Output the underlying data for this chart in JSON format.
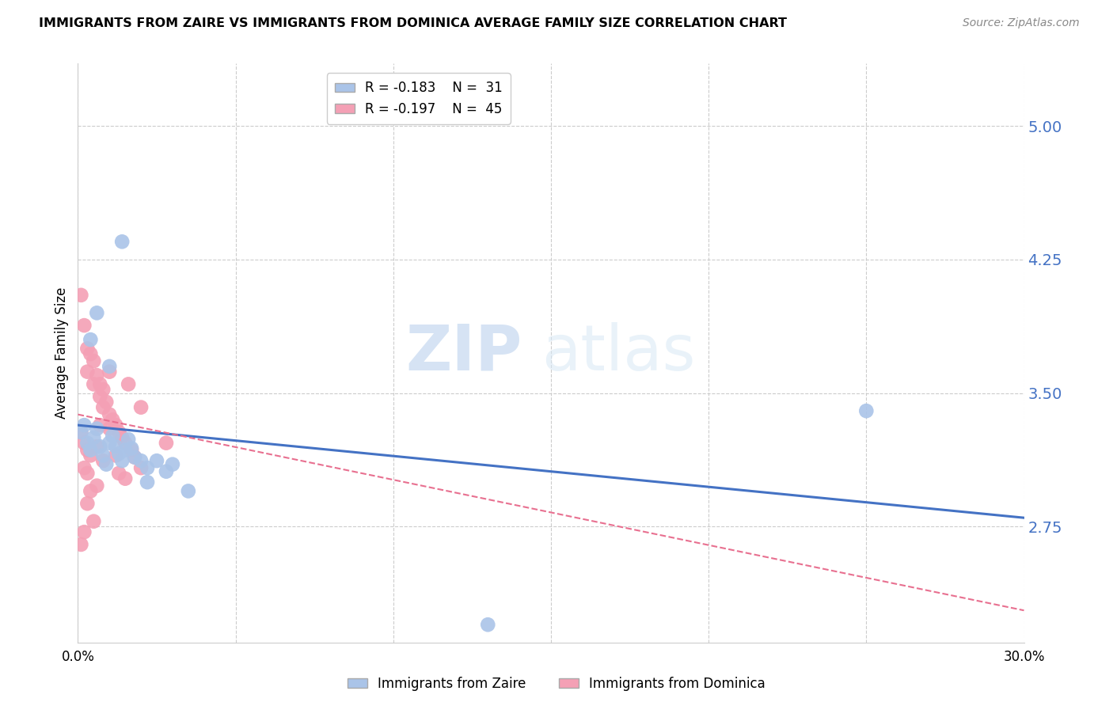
{
  "title": "IMMIGRANTS FROM ZAIRE VS IMMIGRANTS FROM DOMINICA AVERAGE FAMILY SIZE CORRELATION CHART",
  "source": "Source: ZipAtlas.com",
  "ylabel": "Average Family Size",
  "xlim": [
    0.0,
    0.3
  ],
  "ylim": [
    2.1,
    5.35
  ],
  "yticks": [
    2.75,
    3.5,
    4.25,
    5.0
  ],
  "xticks": [
    0.0,
    0.05,
    0.1,
    0.15,
    0.2,
    0.25,
    0.3
  ],
  "background_color": "#ffffff",
  "grid_color": "#cccccc",
  "zaire_color": "#aac4e8",
  "dominica_color": "#f4a0b5",
  "zaire_line_color": "#4472c4",
  "dominica_line_color": "#e87090",
  "legend_r_zaire": "-0.183",
  "legend_n_zaire": "31",
  "legend_r_dominica": "-0.197",
  "legend_n_dominica": "45",
  "watermark_zip": "ZIP",
  "watermark_atlas": "atlas",
  "zaire_points": [
    [
      0.001,
      3.28
    ],
    [
      0.002,
      3.32
    ],
    [
      0.003,
      3.22
    ],
    [
      0.004,
      3.18
    ],
    [
      0.005,
      3.25
    ],
    [
      0.006,
      3.3
    ],
    [
      0.007,
      3.2
    ],
    [
      0.008,
      3.15
    ],
    [
      0.009,
      3.1
    ],
    [
      0.01,
      3.22
    ],
    [
      0.011,
      3.26
    ],
    [
      0.012,
      3.2
    ],
    [
      0.013,
      3.16
    ],
    [
      0.014,
      3.12
    ],
    [
      0.015,
      3.18
    ],
    [
      0.016,
      3.24
    ],
    [
      0.017,
      3.19
    ],
    [
      0.018,
      3.14
    ],
    [
      0.02,
      3.12
    ],
    [
      0.022,
      3.08
    ],
    [
      0.025,
      3.12
    ],
    [
      0.028,
      3.06
    ],
    [
      0.03,
      3.1
    ],
    [
      0.004,
      3.8
    ],
    [
      0.006,
      3.95
    ],
    [
      0.01,
      3.65
    ],
    [
      0.014,
      4.35
    ],
    [
      0.25,
      3.4
    ],
    [
      0.022,
      3.0
    ],
    [
      0.035,
      2.95
    ],
    [
      0.13,
      2.2
    ]
  ],
  "dominica_points": [
    [
      0.001,
      4.05
    ],
    [
      0.002,
      3.88
    ],
    [
      0.003,
      3.75
    ],
    [
      0.003,
      3.62
    ],
    [
      0.004,
      3.72
    ],
    [
      0.005,
      3.68
    ],
    [
      0.005,
      3.55
    ],
    [
      0.006,
      3.6
    ],
    [
      0.007,
      3.55
    ],
    [
      0.007,
      3.48
    ],
    [
      0.008,
      3.52
    ],
    [
      0.008,
      3.42
    ],
    [
      0.009,
      3.45
    ],
    [
      0.01,
      3.38
    ],
    [
      0.01,
      3.3
    ],
    [
      0.011,
      3.35
    ],
    [
      0.012,
      3.32
    ],
    [
      0.013,
      3.28
    ],
    [
      0.014,
      3.25
    ],
    [
      0.015,
      3.22
    ],
    [
      0.016,
      3.55
    ],
    [
      0.017,
      3.18
    ],
    [
      0.018,
      3.14
    ],
    [
      0.002,
      3.22
    ],
    [
      0.003,
      3.18
    ],
    [
      0.004,
      3.15
    ],
    [
      0.001,
      3.28
    ],
    [
      0.006,
      3.2
    ],
    [
      0.008,
      3.12
    ],
    [
      0.002,
      3.08
    ],
    [
      0.003,
      3.05
    ],
    [
      0.02,
      3.42
    ],
    [
      0.028,
      3.22
    ],
    [
      0.005,
      2.78
    ],
    [
      0.015,
      3.02
    ],
    [
      0.001,
      2.65
    ],
    [
      0.003,
      2.88
    ],
    [
      0.02,
      3.08
    ],
    [
      0.007,
      3.32
    ],
    [
      0.013,
      3.05
    ],
    [
      0.002,
      2.72
    ],
    [
      0.004,
      2.95
    ],
    [
      0.01,
      3.62
    ],
    [
      0.006,
      2.98
    ],
    [
      0.012,
      3.15
    ]
  ],
  "zaire_line": {
    "x0": 0.0,
    "y0": 3.32,
    "x1": 0.3,
    "y1": 2.8
  },
  "dominica_line": {
    "x0": 0.0,
    "y0": 3.38,
    "x1": 0.3,
    "y1": 2.28
  }
}
